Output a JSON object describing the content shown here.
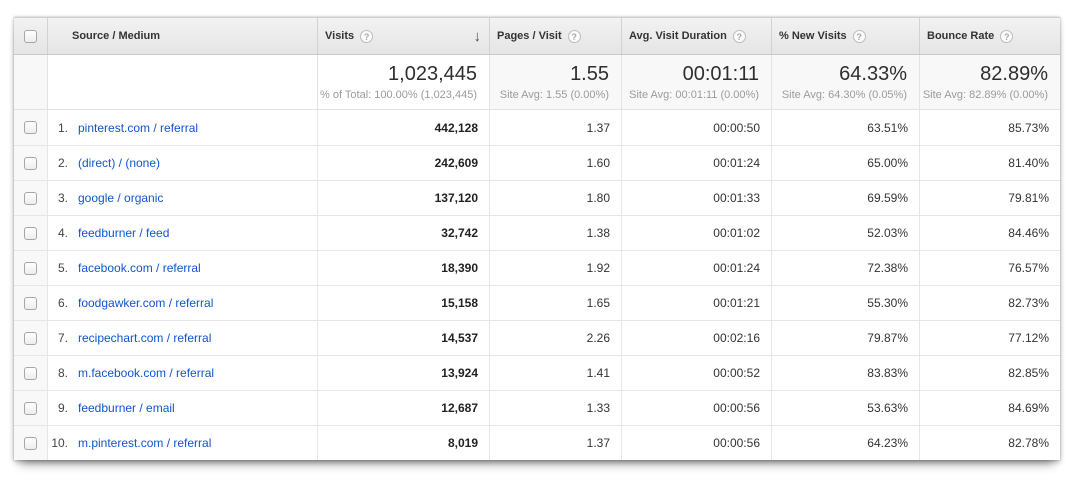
{
  "table": {
    "columns": {
      "source_medium": "Source / Medium",
      "visits": "Visits",
      "pages_per_visit": "Pages / Visit",
      "avg_visit_duration": "Avg. Visit Duration",
      "pct_new_visits": "% New Visits",
      "bounce_rate": "Bounce Rate"
    },
    "help_icon_glyph": "?",
    "sort_arrow_glyph": "↓",
    "sorted_column": "Visits",
    "summary": {
      "visits": {
        "value": "1,023,445",
        "sub": "% of Total: 100.00% (1,023,445)"
      },
      "pages_per_visit": {
        "value": "1.55",
        "sub": "Site Avg: 1.55 (0.00%)"
      },
      "avg_visit_duration": {
        "value": "00:01:11",
        "sub": "Site Avg: 00:01:11 (0.00%)"
      },
      "pct_new_visits": {
        "value": "64.33%",
        "sub": "Site Avg: 64.30% (0.05%)"
      },
      "bounce_rate": {
        "value": "82.89%",
        "sub": "Site Avg: 82.89% (0.00%)"
      }
    },
    "rows": [
      {
        "rank": "1.",
        "source_medium": "pinterest.com / referral",
        "visits": "442,128",
        "pages_per_visit": "1.37",
        "avg_visit_duration": "00:00:50",
        "pct_new_visits": "63.51%",
        "bounce_rate": "85.73%"
      },
      {
        "rank": "2.",
        "source_medium": "(direct) / (none)",
        "visits": "242,609",
        "pages_per_visit": "1.60",
        "avg_visit_duration": "00:01:24",
        "pct_new_visits": "65.00%",
        "bounce_rate": "81.40%"
      },
      {
        "rank": "3.",
        "source_medium": "google / organic",
        "visits": "137,120",
        "pages_per_visit": "1.80",
        "avg_visit_duration": "00:01:33",
        "pct_new_visits": "69.59%",
        "bounce_rate": "79.81%"
      },
      {
        "rank": "4.",
        "source_medium": "feedburner / feed",
        "visits": "32,742",
        "pages_per_visit": "1.38",
        "avg_visit_duration": "00:01:02",
        "pct_new_visits": "52.03%",
        "bounce_rate": "84.46%"
      },
      {
        "rank": "5.",
        "source_medium": "facebook.com / referral",
        "visits": "18,390",
        "pages_per_visit": "1.92",
        "avg_visit_duration": "00:01:24",
        "pct_new_visits": "72.38%",
        "bounce_rate": "76.57%"
      },
      {
        "rank": "6.",
        "source_medium": "foodgawker.com / referral",
        "visits": "15,158",
        "pages_per_visit": "1.65",
        "avg_visit_duration": "00:01:21",
        "pct_new_visits": "55.30%",
        "bounce_rate": "82.73%"
      },
      {
        "rank": "7.",
        "source_medium": "recipechart.com / referral",
        "visits": "14,537",
        "pages_per_visit": "2.26",
        "avg_visit_duration": "00:02:16",
        "pct_new_visits": "79.87%",
        "bounce_rate": "77.12%"
      },
      {
        "rank": "8.",
        "source_medium": "m.facebook.com / referral",
        "visits": "13,924",
        "pages_per_visit": "1.41",
        "avg_visit_duration": "00:00:52",
        "pct_new_visits": "83.83%",
        "bounce_rate": "82.85%"
      },
      {
        "rank": "9.",
        "source_medium": "feedburner / email",
        "visits": "12,687",
        "pages_per_visit": "1.33",
        "avg_visit_duration": "00:00:56",
        "pct_new_visits": "53.63%",
        "bounce_rate": "84.69%"
      },
      {
        "rank": "10.",
        "source_medium": "m.pinterest.com / referral",
        "visits": "8,019",
        "pages_per_visit": "1.37",
        "avg_visit_duration": "00:00:56",
        "pct_new_visits": "64.23%",
        "bounce_rate": "82.78%"
      }
    ]
  },
  "colors": {
    "link_blue": "#1155cc",
    "header_background": "#ececec",
    "summary_cell_background": "#f8f8f8"
  }
}
